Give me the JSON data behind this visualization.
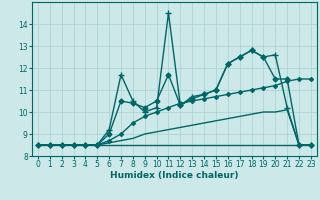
{
  "xlabel": "Humidex (Indice chaleur)",
  "bg_color": "#cce8e8",
  "line_color": "#006666",
  "grid_color": "#aacfcf",
  "xlim": [
    -0.5,
    23.5
  ],
  "ylim": [
    8,
    15
  ],
  "yticks": [
    8,
    9,
    10,
    11,
    12,
    13,
    14
  ],
  "xticks": [
    0,
    1,
    2,
    3,
    4,
    5,
    6,
    7,
    8,
    9,
    10,
    11,
    12,
    13,
    14,
    15,
    16,
    17,
    18,
    19,
    20,
    21,
    22,
    23
  ],
  "series": [
    {
      "x": [
        0,
        1,
        2,
        3,
        4,
        5,
        6,
        7,
        8,
        9,
        10,
        11,
        12,
        13,
        14,
        15,
        16,
        17,
        18,
        19,
        20,
        21,
        22,
        23
      ],
      "y": [
        8.5,
        8.5,
        8.5,
        8.5,
        8.5,
        8.5,
        8.5,
        8.5,
        8.5,
        8.5,
        8.5,
        8.5,
        8.5,
        8.5,
        8.5,
        8.5,
        8.5,
        8.5,
        8.5,
        8.5,
        8.5,
        8.5,
        8.5,
        8.5
      ],
      "marker": null,
      "lw": 1.0
    },
    {
      "x": [
        0,
        1,
        2,
        3,
        4,
        5,
        6,
        7,
        8,
        9,
        10,
        11,
        12,
        13,
        14,
        15,
        16,
        17,
        18,
        19,
        20,
        21,
        22,
        23
      ],
      "y": [
        8.5,
        8.5,
        8.5,
        8.5,
        8.5,
        8.5,
        8.6,
        8.7,
        8.8,
        9.0,
        9.1,
        9.2,
        9.3,
        9.4,
        9.5,
        9.6,
        9.7,
        9.8,
        9.9,
        10.0,
        10.0,
        10.1,
        8.5,
        8.5
      ],
      "marker": null,
      "lw": 1.0
    },
    {
      "x": [
        0,
        1,
        2,
        3,
        4,
        5,
        6,
        7,
        8,
        9,
        10,
        11,
        12,
        13,
        14,
        15,
        16,
        17,
        18,
        19,
        20,
        21,
        22,
        23
      ],
      "y": [
        8.5,
        8.5,
        8.5,
        8.5,
        8.5,
        8.5,
        8.7,
        9.0,
        9.5,
        9.8,
        10.0,
        10.2,
        10.4,
        10.5,
        10.6,
        10.7,
        10.8,
        10.9,
        11.0,
        11.1,
        11.2,
        11.4,
        11.5,
        11.5
      ],
      "marker": "D",
      "ms": 2.0,
      "lw": 1.0
    },
    {
      "x": [
        0,
        1,
        2,
        3,
        4,
        5,
        6,
        7,
        8,
        9,
        10,
        11,
        12,
        13,
        14,
        15,
        16,
        17,
        18,
        19,
        20,
        21,
        22,
        23
      ],
      "y": [
        8.5,
        8.5,
        8.5,
        8.5,
        8.5,
        8.5,
        9.2,
        11.7,
        10.5,
        10.0,
        10.2,
        14.5,
        10.3,
        10.7,
        10.8,
        11.0,
        12.2,
        12.5,
        12.8,
        12.5,
        12.6,
        10.2,
        8.5,
        8.5
      ],
      "marker": "+",
      "ms": 4.5,
      "lw": 1.0
    },
    {
      "x": [
        0,
        1,
        2,
        3,
        4,
        5,
        6,
        7,
        8,
        9,
        10,
        11,
        12,
        13,
        14,
        15,
        16,
        17,
        18,
        19,
        20,
        21,
        22,
        23
      ],
      "y": [
        8.5,
        8.5,
        8.5,
        8.5,
        8.5,
        8.5,
        9.0,
        10.5,
        10.4,
        10.2,
        10.5,
        11.7,
        10.3,
        10.6,
        10.8,
        11.0,
        12.2,
        12.5,
        12.8,
        12.5,
        11.5,
        11.5,
        8.5,
        8.5
      ],
      "marker": "D",
      "ms": 2.5,
      "lw": 1.0
    }
  ]
}
